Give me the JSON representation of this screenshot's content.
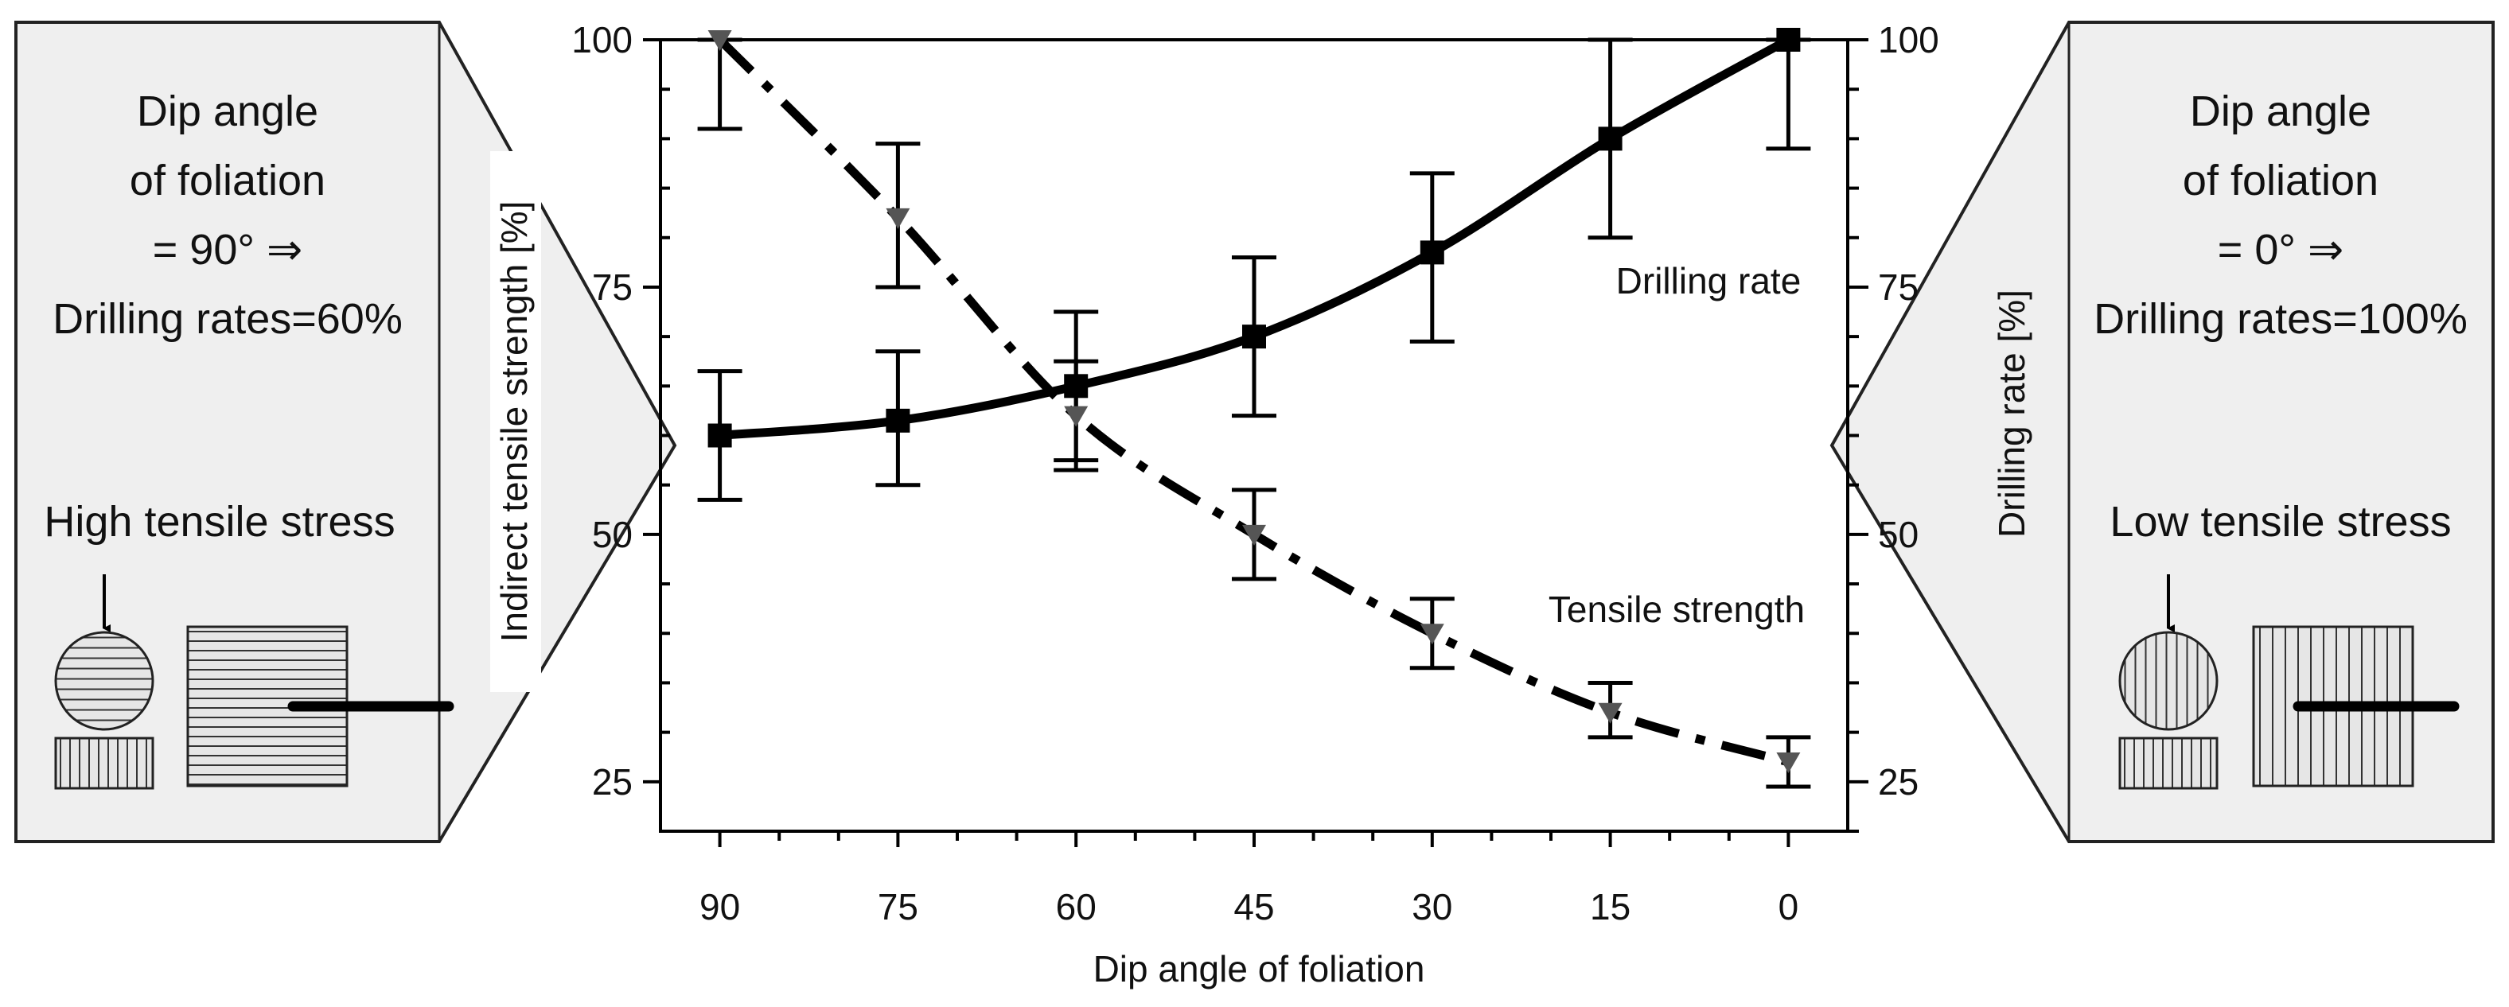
{
  "chart_data": {
    "type": "line",
    "x_label": "Dip angle of foliation",
    "y_left_label": "Indirect tensile strength [%]",
    "y_right_label": "Drilling rate [%]",
    "x": [
      90,
      75,
      60,
      45,
      30,
      15,
      0
    ],
    "x_ticks": [
      "90",
      "75",
      "60",
      "45",
      "30",
      "15",
      "0"
    ],
    "x_range": [
      95,
      -5
    ],
    "x_direction": "reversed",
    "y_range": [
      20,
      100
    ],
    "y_ticks": [
      "25",
      "50",
      "75",
      "100"
    ],
    "y_tick_values": [
      25,
      50,
      75,
      100
    ],
    "grid": false,
    "series": [
      {
        "name": "Drilling rate",
        "label": "Drilling rate",
        "line_style": "solid",
        "marker": "square",
        "color": "#000000",
        "values": [
          60,
          61.5,
          65,
          70,
          78.5,
          90,
          100
        ],
        "error_upper": [
          66.5,
          68.5,
          72.5,
          78,
          86.5,
          100,
          100
        ],
        "error_lower": [
          53.5,
          55,
          57.5,
          62,
          69.5,
          80,
          89
        ]
      },
      {
        "name": "Tensile strength",
        "label": "Tensile strength",
        "line_style": "dash-dot",
        "marker": "triangle-down",
        "color": "#555555",
        "values": [
          100,
          82,
          62,
          50,
          40,
          32,
          27
        ],
        "error_upper": [
          100,
          89.5,
          67.5,
          54.5,
          43.5,
          35,
          29.5
        ],
        "error_lower": [
          91,
          75,
          56.5,
          45.5,
          36.5,
          29.5,
          24.5
        ]
      }
    ]
  },
  "panels": {
    "left": {
      "line1": "Dip angle",
      "line2": "of foliation",
      "line3": "= 90° ⇒",
      "line4": "Drilling rates=60%",
      "stress_label": "High tensile stress",
      "foliation": "horizontal"
    },
    "right": {
      "line1": "Dip angle",
      "line2": "of foliation",
      "line3": "= 0° ⇒",
      "line4": "Drilling rates=100%",
      "stress_label": "Low tensile stress",
      "foliation": "vertical"
    }
  },
  "colors": {
    "panel_fill": "#efefef",
    "panel_stroke": "#222222",
    "specimen_fill": "#e6e6e6",
    "line": "#000000",
    "triangle_marker": "#555555"
  }
}
